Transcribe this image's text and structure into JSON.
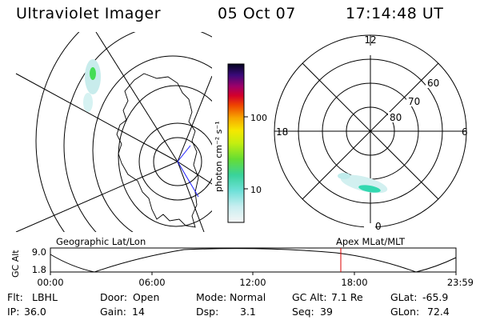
{
  "header": {
    "title": "Ultraviolet Imager",
    "date": "05 Oct 07",
    "time": "17:14:48 UT"
  },
  "colorbar": {
    "unit_label": "photon cm⁻² s⁻¹",
    "ticks": [
      "100",
      "10"
    ]
  },
  "polar_plot": {
    "mlt_labels": {
      "top": "12",
      "left": "18",
      "right": "6",
      "bottom": "0"
    },
    "lat_labels": [
      "60",
      "70",
      "80"
    ]
  },
  "orbit": {
    "left_caption": "Geographic Lat/Lon",
    "right_caption": "Apex MLat/MLT",
    "y_axis_label": "GC Alt",
    "y_ticks": [
      "9.0",
      "1.8"
    ],
    "x_ticks": [
      "00:00",
      "06:00",
      "12:00",
      "18:00",
      "23:59"
    ],
    "marker_time": "17:14:48"
  },
  "info": {
    "row1": [
      {
        "key": "Flt:",
        "value": "LBHL"
      },
      {
        "key": "Door:",
        "value": "Open"
      },
      {
        "key": "Mode:",
        "value": "Normal"
      },
      {
        "key": "GC Alt:",
        "value": "7.1 Re"
      },
      {
        "key": "GLat:",
        "value": "-65.9"
      }
    ],
    "row2": [
      {
        "key": "IP:",
        "value": "36.0"
      },
      {
        "key": "Gain:",
        "value": "14"
      },
      {
        "key": "Dsp:",
        "value": "3.1"
      },
      {
        "key": "Seq:",
        "value": "39"
      },
      {
        "key": "GLon:",
        "value": "72.4"
      }
    ]
  },
  "colors": {
    "marker": "#dd0000",
    "grid": "#000000",
    "aurora_dim": "#c8ecec",
    "aurora_bright": "#33d8b0"
  }
}
